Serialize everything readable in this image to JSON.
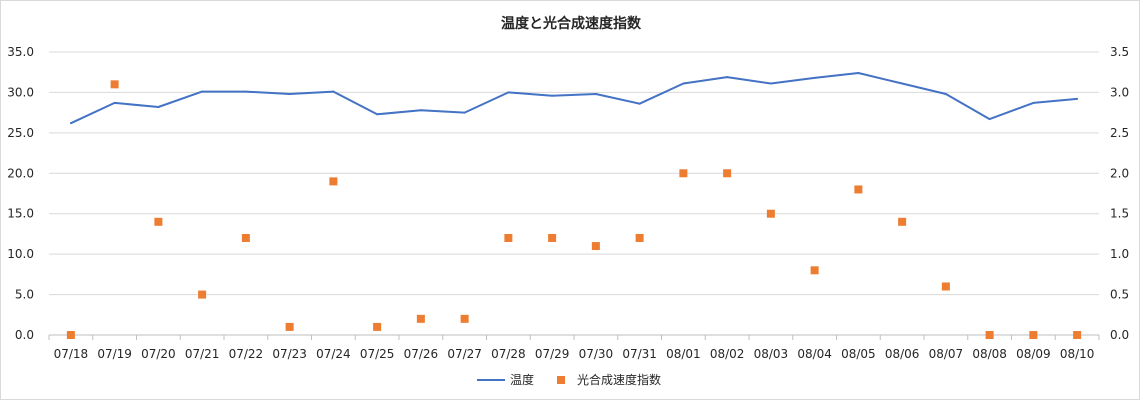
{
  "chart_data": {
    "type": "line",
    "title": "温度と光合成速度指数",
    "categories": [
      "07/18",
      "07/19",
      "07/20",
      "07/21",
      "07/22",
      "07/23",
      "07/24",
      "07/25",
      "07/26",
      "07/27",
      "07/28",
      "07/29",
      "07/30",
      "07/31",
      "08/01",
      "08/02",
      "08/03",
      "08/04",
      "08/05",
      "08/06",
      "08/07",
      "08/08",
      "08/09",
      "08/10"
    ],
    "series": [
      {
        "name": "温度",
        "kind": "line",
        "axis": "left",
        "color": "#4472c4",
        "values": [
          26.2,
          28.7,
          28.2,
          30.1,
          30.1,
          29.8,
          30.1,
          27.3,
          27.8,
          27.5,
          30.0,
          29.6,
          29.8,
          28.6,
          31.1,
          31.9,
          31.1,
          31.8,
          32.4,
          31.1,
          29.8,
          26.7,
          28.7,
          29.2
        ]
      },
      {
        "name": "光合成速度指数",
        "kind": "scatter",
        "axis": "right",
        "color": "#ed7d31",
        "values": [
          0.0,
          3.1,
          1.4,
          0.5,
          1.2,
          0.1,
          1.9,
          0.1,
          0.2,
          0.2,
          1.2,
          1.2,
          1.1,
          1.2,
          2.0,
          2.0,
          1.5,
          0.8,
          1.8,
          1.4,
          0.6,
          0.0,
          0.0,
          0.0
        ]
      }
    ],
    "ylim": [
      0,
      35
    ],
    "y2lim": [
      0,
      3.5
    ],
    "yticks": [
      "0.0",
      "5.0",
      "10.0",
      "15.0",
      "20.0",
      "25.0",
      "30.0",
      "35.0"
    ],
    "y2ticks": [
      "0.0",
      "0.5",
      "1.0",
      "1.5",
      "2.0",
      "2.5",
      "3.0",
      "3.5"
    ],
    "grid": true,
    "legend_position": "bottom",
    "xlabel": "",
    "ylabel": ""
  }
}
